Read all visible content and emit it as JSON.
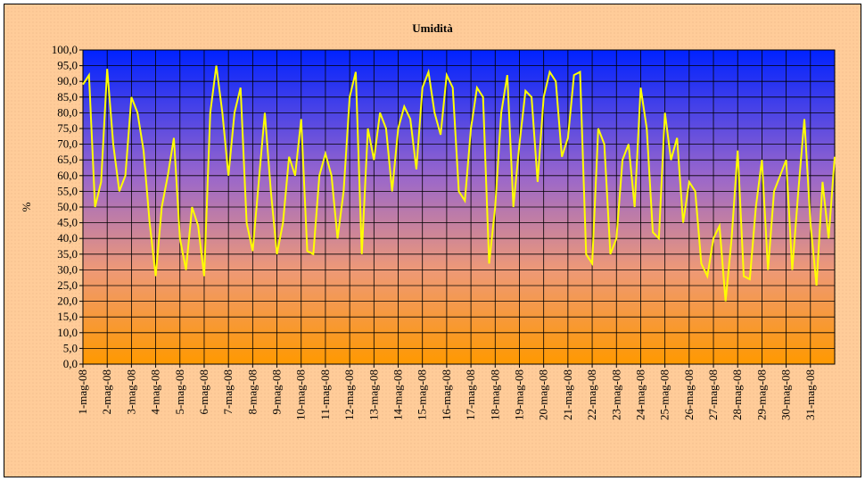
{
  "chart_data": {
    "type": "line",
    "title": "Umidità",
    "y_label": "%",
    "series": [
      {
        "name": "Umidità",
        "color": "#ffff00",
        "values": [
          89,
          92,
          50,
          58,
          94,
          70,
          55,
          60,
          85,
          80,
          68,
          45,
          28,
          50,
          60,
          72,
          40,
          30,
          50,
          44,
          28,
          80,
          95,
          80,
          60,
          80,
          88,
          45,
          36,
          58,
          80,
          55,
          35,
          45,
          66,
          60,
          78,
          36,
          35,
          60,
          67,
          60,
          40,
          55,
          85,
          93,
          35,
          75,
          65,
          80,
          75,
          55,
          75,
          82,
          78,
          62,
          88,
          93,
          80,
          73,
          92,
          88,
          55,
          52,
          75,
          88,
          85,
          32,
          50,
          80,
          92,
          50,
          70,
          87,
          85,
          58,
          85,
          93,
          90,
          66,
          72,
          92,
          93,
          35,
          32,
          75,
          70,
          35,
          40,
          65,
          70,
          50,
          88,
          75,
          42,
          40,
          80,
          65,
          72,
          45,
          58,
          55,
          32,
          28,
          40,
          44,
          20,
          40,
          68,
          28,
          27,
          50,
          65,
          30,
          55,
          60,
          65,
          30,
          55,
          78,
          45,
          25,
          58,
          40,
          66
        ]
      }
    ],
    "x": [
      0,
      0.25,
      0.5,
      0.75,
      1,
      1.25,
      1.5,
      1.75,
      2,
      2.25,
      2.5,
      2.75,
      3,
      3.25,
      3.5,
      3.75,
      4,
      4.25,
      4.5,
      4.75,
      5,
      5.25,
      5.5,
      5.75,
      6,
      6.25,
      6.5,
      6.75,
      7,
      7.25,
      7.5,
      7.75,
      8,
      8.25,
      8.5,
      8.75,
      9,
      9.25,
      9.5,
      9.75,
      10,
      10.25,
      10.5,
      10.75,
      11,
      11.25,
      11.5,
      11.75,
      12,
      12.25,
      12.5,
      12.75,
      13,
      13.25,
      13.5,
      13.75,
      14,
      14.25,
      14.5,
      14.75,
      15,
      15.25,
      15.5,
      15.75,
      16,
      16.25,
      16.5,
      16.75,
      17,
      17.25,
      17.5,
      17.75,
      18,
      18.25,
      18.5,
      18.75,
      19,
      19.25,
      19.5,
      19.75,
      20,
      20.25,
      20.5,
      20.75,
      21,
      21.25,
      21.5,
      21.75,
      22,
      22.25,
      22.5,
      22.75,
      23,
      23.25,
      23.5,
      23.75,
      24,
      24.25,
      24.5,
      24.75,
      25,
      25.25,
      25.5,
      25.75,
      26,
      26.25,
      26.5,
      26.75,
      27,
      27.25,
      27.5,
      27.75,
      28,
      28.25,
      28.5,
      28.75,
      29,
      29.25,
      29.5,
      29.75,
      30,
      30.25,
      30.5,
      30.75,
      31
    ],
    "xlim": [
      0,
      31
    ],
    "xticks": [
      {
        "value": 0,
        "label": "1-mag-08"
      },
      {
        "value": 1,
        "label": "2-mag-08"
      },
      {
        "value": 2,
        "label": "3-mag-08"
      },
      {
        "value": 3,
        "label": "4-mag-08"
      },
      {
        "value": 4,
        "label": "5-mag-08"
      },
      {
        "value": 5,
        "label": "6-mag-08"
      },
      {
        "value": 6,
        "label": "7-mag-08"
      },
      {
        "value": 7,
        "label": "8-mag-08"
      },
      {
        "value": 8,
        "label": "9-mag-08"
      },
      {
        "value": 9,
        "label": "10-mag-08"
      },
      {
        "value": 10,
        "label": "11-mag-08"
      },
      {
        "value": 11,
        "label": "12-mag-08"
      },
      {
        "value": 12,
        "label": "13-mag-08"
      },
      {
        "value": 13,
        "label": "14-mag-08"
      },
      {
        "value": 14,
        "label": "15-mag-08"
      },
      {
        "value": 15,
        "label": "16-mag-08"
      },
      {
        "value": 16,
        "label": "17-mag-08"
      },
      {
        "value": 17,
        "label": "18-mag-08"
      },
      {
        "value": 18,
        "label": "19-mag-08"
      },
      {
        "value": 19,
        "label": "20-mag-08"
      },
      {
        "value": 20,
        "label": "21-mag-08"
      },
      {
        "value": 21,
        "label": "22-mag-08"
      },
      {
        "value": 22,
        "label": "23-mag-08"
      },
      {
        "value": 23,
        "label": "24-mag-08"
      },
      {
        "value": 24,
        "label": "25-mag-08"
      },
      {
        "value": 25,
        "label": "26-mag-08"
      },
      {
        "value": 26,
        "label": "27-mag-08"
      },
      {
        "value": 27,
        "label": "28-mag-08"
      },
      {
        "value": 28,
        "label": "29-mag-08"
      },
      {
        "value": 29,
        "label": "30-mag-08"
      },
      {
        "value": 30,
        "label": "31-mag-08"
      }
    ],
    "ylim": [
      0,
      100
    ],
    "yticks": [
      {
        "value": 0,
        "label": "0,0"
      },
      {
        "value": 5,
        "label": "5,0"
      },
      {
        "value": 10,
        "label": "10,0"
      },
      {
        "value": 15,
        "label": "15,0"
      },
      {
        "value": 20,
        "label": "20,0"
      },
      {
        "value": 25,
        "label": "25,0"
      },
      {
        "value": 30,
        "label": "30,0"
      },
      {
        "value": 35,
        "label": "35,0"
      },
      {
        "value": 40,
        "label": "40,0"
      },
      {
        "value": 45,
        "label": "45,0"
      },
      {
        "value": 50,
        "label": "50,0"
      },
      {
        "value": 55,
        "label": "55,0"
      },
      {
        "value": 60,
        "label": "60,0"
      },
      {
        "value": 65,
        "label": "65,0"
      },
      {
        "value": 70,
        "label": "70,0"
      },
      {
        "value": 75,
        "label": "75,0"
      },
      {
        "value": 80,
        "label": "80,0"
      },
      {
        "value": 85,
        "label": "85,0"
      },
      {
        "value": 90,
        "label": "90,0"
      },
      {
        "value": 95,
        "label": "95,0"
      },
      {
        "value": 100,
        "label": "100,0"
      }
    ],
    "grid": true
  }
}
